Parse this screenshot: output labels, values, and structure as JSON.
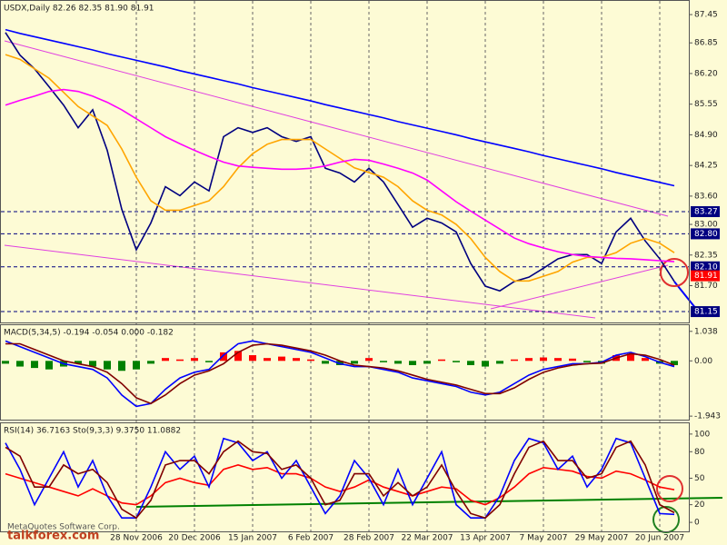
{
  "chart_data": [
    {
      "type": "line",
      "title": "USDX,Daily  82.26 82.35 81.90 81.91",
      "ylim": [
        80.92,
        87.74
      ],
      "yticks": [
        87.45,
        86.85,
        {
          "value": 86.2,
          "label": "86.20"
        },
        85.55,
        {
          "value": 84.9,
          "label": "84.90"
        },
        84.25,
        {
          "value": 83.6,
          "label": "83.60"
        },
        {
          "value": 83,
          "label": "83.00"
        },
        82.35,
        {
          "value": 81.7,
          "label": "81.70"
        }
      ],
      "levels": [
        83.27,
        {
          "value": 82.8,
          "label": "82.80"
        },
        {
          "value": 82.1,
          "label": "82.10"
        },
        81.15
      ],
      "last": 81.91,
      "last_color": "#ff0000",
      "level_color": "#000080",
      "series": [
        {
          "color": "#000080",
          "values": [
            87.07,
            86.59,
            86.3,
            85.92,
            85.53,
            85.05,
            85.43,
            84.57,
            83.32,
            82.46,
            83.03,
            83.8,
            83.61,
            83.9,
            83.71,
            84.86,
            85.05,
            84.95,
            85.05,
            84.86,
            84.76,
            84.86,
            84.19,
            84.09,
            83.9,
            84.19,
            83.9,
            83.42,
            82.94,
            83.13,
            83.03,
            82.84,
            82.17,
            81.69,
            81.59,
            81.79,
            81.88,
            82.07,
            82.27,
            82.36,
            82.36,
            82.17,
            82.84,
            83.13,
            82.65,
            82.27,
            81.79
          ]
        },
        {
          "color": "#ffa500",
          "values": [
            86.6,
            86.5,
            86.3,
            86.1,
            85.8,
            85.5,
            85.3,
            85.1,
            84.6,
            84.0,
            83.5,
            83.3,
            83.3,
            83.4,
            83.5,
            83.8,
            84.2,
            84.5,
            84.7,
            84.8,
            84.8,
            84.8,
            84.6,
            84.4,
            84.2,
            84.1,
            84.0,
            83.8,
            83.5,
            83.3,
            83.2,
            83.0,
            82.7,
            82.3,
            82.0,
            81.8,
            81.8,
            81.9,
            82.0,
            82.2,
            82.3,
            82.3,
            82.4,
            82.6,
            82.7,
            82.6,
            82.4
          ]
        },
        {
          "color": "#ff00ff",
          "values": [
            85.53,
            85.63,
            85.72,
            85.82,
            85.86,
            85.82,
            85.72,
            85.59,
            85.43,
            85.24,
            85.05,
            84.86,
            84.71,
            84.57,
            84.44,
            84.32,
            84.24,
            84.21,
            84.19,
            84.17,
            84.17,
            84.19,
            84.24,
            84.32,
            84.38,
            84.36,
            84.28,
            84.19,
            84.09,
            83.94,
            83.71,
            83.48,
            83.28,
            83.09,
            82.9,
            82.71,
            82.59,
            82.5,
            82.42,
            82.36,
            82.32,
            82.3,
            82.28,
            82.27,
            82.25,
            82.23,
            82.21
          ]
        },
        {
          "color": "#0000ff",
          "values": [
            87.13,
            87.05,
            86.98,
            86.91,
            86.84,
            86.77,
            86.7,
            86.62,
            86.55,
            86.48,
            86.41,
            86.34,
            86.26,
            86.19,
            86.12,
            86.05,
            85.98,
            85.9,
            85.83,
            85.76,
            85.69,
            85.62,
            85.54,
            85.47,
            85.4,
            85.33,
            85.26,
            85.18,
            85.11,
            85.04,
            84.97,
            84.9,
            84.82,
            84.75,
            84.68,
            84.61,
            84.54,
            84.46,
            84.39,
            84.32,
            84.25,
            84.18,
            84.1,
            84.03,
            83.96,
            83.89,
            83.82
          ]
        }
      ]
    },
    {
      "type": "line",
      "title": "MACD(5,34,5) -0.194 -0.054 0.000 -0.182",
      "ylim": [
        -2.067,
        1.255
      ],
      "yticks": [
        1.038,
        {
          "value": 0,
          "label": "0.00"
        },
        -1.943
      ],
      "series": [
        {
          "type": "bar",
          "color": "#ff0000",
          "negative_color": "#008000",
          "values": [
            -0.1,
            -0.2,
            -0.25,
            -0.3,
            -0.2,
            -0.1,
            -0.2,
            -0.3,
            -0.35,
            -0.3,
            -0.1,
            0.1,
            0.05,
            0.1,
            -0.05,
            0.3,
            0.35,
            0.2,
            0.1,
            0.15,
            0.1,
            0.05,
            -0.1,
            -0.15,
            -0.1,
            0.1,
            -0.05,
            -0.1,
            -0.15,
            -0.1,
            0.05,
            -0.05,
            -0.15,
            -0.2,
            -0.1,
            0.05,
            0.1,
            0.12,
            0.1,
            0.08,
            -0.05,
            -0.1,
            0.2,
            0.25,
            0.1,
            -0.1,
            -0.15
          ]
        },
        {
          "color": "#0000ff",
          "values": [
            0.7,
            0.5,
            0.3,
            0.1,
            -0.1,
            -0.2,
            -0.3,
            -0.6,
            -1.2,
            -1.6,
            -1.5,
            -1.0,
            -0.6,
            -0.4,
            -0.3,
            0.2,
            0.6,
            0.7,
            0.6,
            0.5,
            0.4,
            0.3,
            0.1,
            -0.1,
            -0.2,
            -0.2,
            -0.3,
            -0.4,
            -0.6,
            -0.7,
            -0.8,
            -0.9,
            -1.1,
            -1.2,
            -1.1,
            -0.8,
            -0.5,
            -0.3,
            -0.2,
            -0.1,
            -0.1,
            -0.05,
            0.2,
            0.3,
            0.15,
            -0.05,
            -0.2
          ]
        },
        {
          "color": "#800000",
          "values": [
            0.6,
            0.6,
            0.4,
            0.2,
            0.0,
            -0.1,
            -0.2,
            -0.4,
            -0.8,
            -1.3,
            -1.5,
            -1.2,
            -0.8,
            -0.5,
            -0.35,
            -0.1,
            0.3,
            0.55,
            0.6,
            0.55,
            0.45,
            0.35,
            0.2,
            0.0,
            -0.15,
            -0.2,
            -0.25,
            -0.35,
            -0.5,
            -0.65,
            -0.75,
            -0.85,
            -1.0,
            -1.15,
            -1.15,
            -0.95,
            -0.65,
            -0.4,
            -0.25,
            -0.15,
            -0.1,
            -0.08,
            0.1,
            0.25,
            0.2,
            0.05,
            -0.15
          ]
        }
      ]
    },
    {
      "type": "line",
      "title": "RSI(14) 36.7163  Sto(9,3,3) 9.3750 11.0882",
      "ylim": [
        -10.2,
        112.2
      ],
      "yticks": [
        100,
        80,
        50,
        20,
        0
      ],
      "grid": true,
      "categories": [
        null,
        null,
        null,
        null,
        null,
        null,
        null,
        null,
        null,
        "28 Nov 2006",
        null,
        null,
        null,
        "20 Dec 2006",
        null,
        null,
        null,
        "15 Jan 2007",
        null,
        null,
        null,
        "6 Feb 2007",
        null,
        null,
        null,
        "28 Feb 2007",
        null,
        null,
        null,
        "22 Mar 2007",
        null,
        null,
        null,
        "13 Apr 2007",
        null,
        null,
        null,
        "7 May 2007",
        null,
        null,
        null,
        "29 May 2007",
        null,
        null,
        null,
        "20 Jun 2007",
        null
      ],
      "series": [
        {
          "color": "#ff0000",
          "values": [
            55,
            50,
            45,
            40,
            35,
            30,
            38,
            30,
            22,
            20,
            30,
            45,
            50,
            45,
            42,
            60,
            65,
            60,
            62,
            55,
            55,
            50,
            40,
            35,
            40,
            48,
            40,
            35,
            30,
            35,
            40,
            38,
            25,
            20,
            28,
            40,
            55,
            62,
            60,
            58,
            52,
            50,
            58,
            55,
            48,
            40,
            37
          ]
        },
        {
          "color": "#0000ff",
          "values": [
            90,
            60,
            20,
            50,
            80,
            40,
            70,
            30,
            5,
            5,
            40,
            80,
            60,
            75,
            40,
            95,
            90,
            70,
            80,
            50,
            70,
            40,
            10,
            30,
            70,
            50,
            20,
            60,
            20,
            50,
            80,
            20,
            5,
            5,
            30,
            70,
            95,
            90,
            60,
            75,
            40,
            60,
            95,
            90,
            50,
            10,
            9
          ]
        },
        {
          "color": "#800000",
          "values": [
            85,
            75,
            40,
            40,
            65,
            55,
            60,
            45,
            15,
            5,
            25,
            65,
            70,
            70,
            55,
            80,
            92,
            80,
            78,
            60,
            65,
            50,
            20,
            25,
            55,
            55,
            30,
            45,
            30,
            40,
            65,
            35,
            10,
            5,
            20,
            55,
            85,
            92,
            70,
            70,
            50,
            55,
            85,
            92,
            65,
            20,
            11
          ]
        }
      ]
    }
  ],
  "watermark": {
    "site": "talkforex.com",
    "copyright": "MetaQuotes Software Corp."
  }
}
